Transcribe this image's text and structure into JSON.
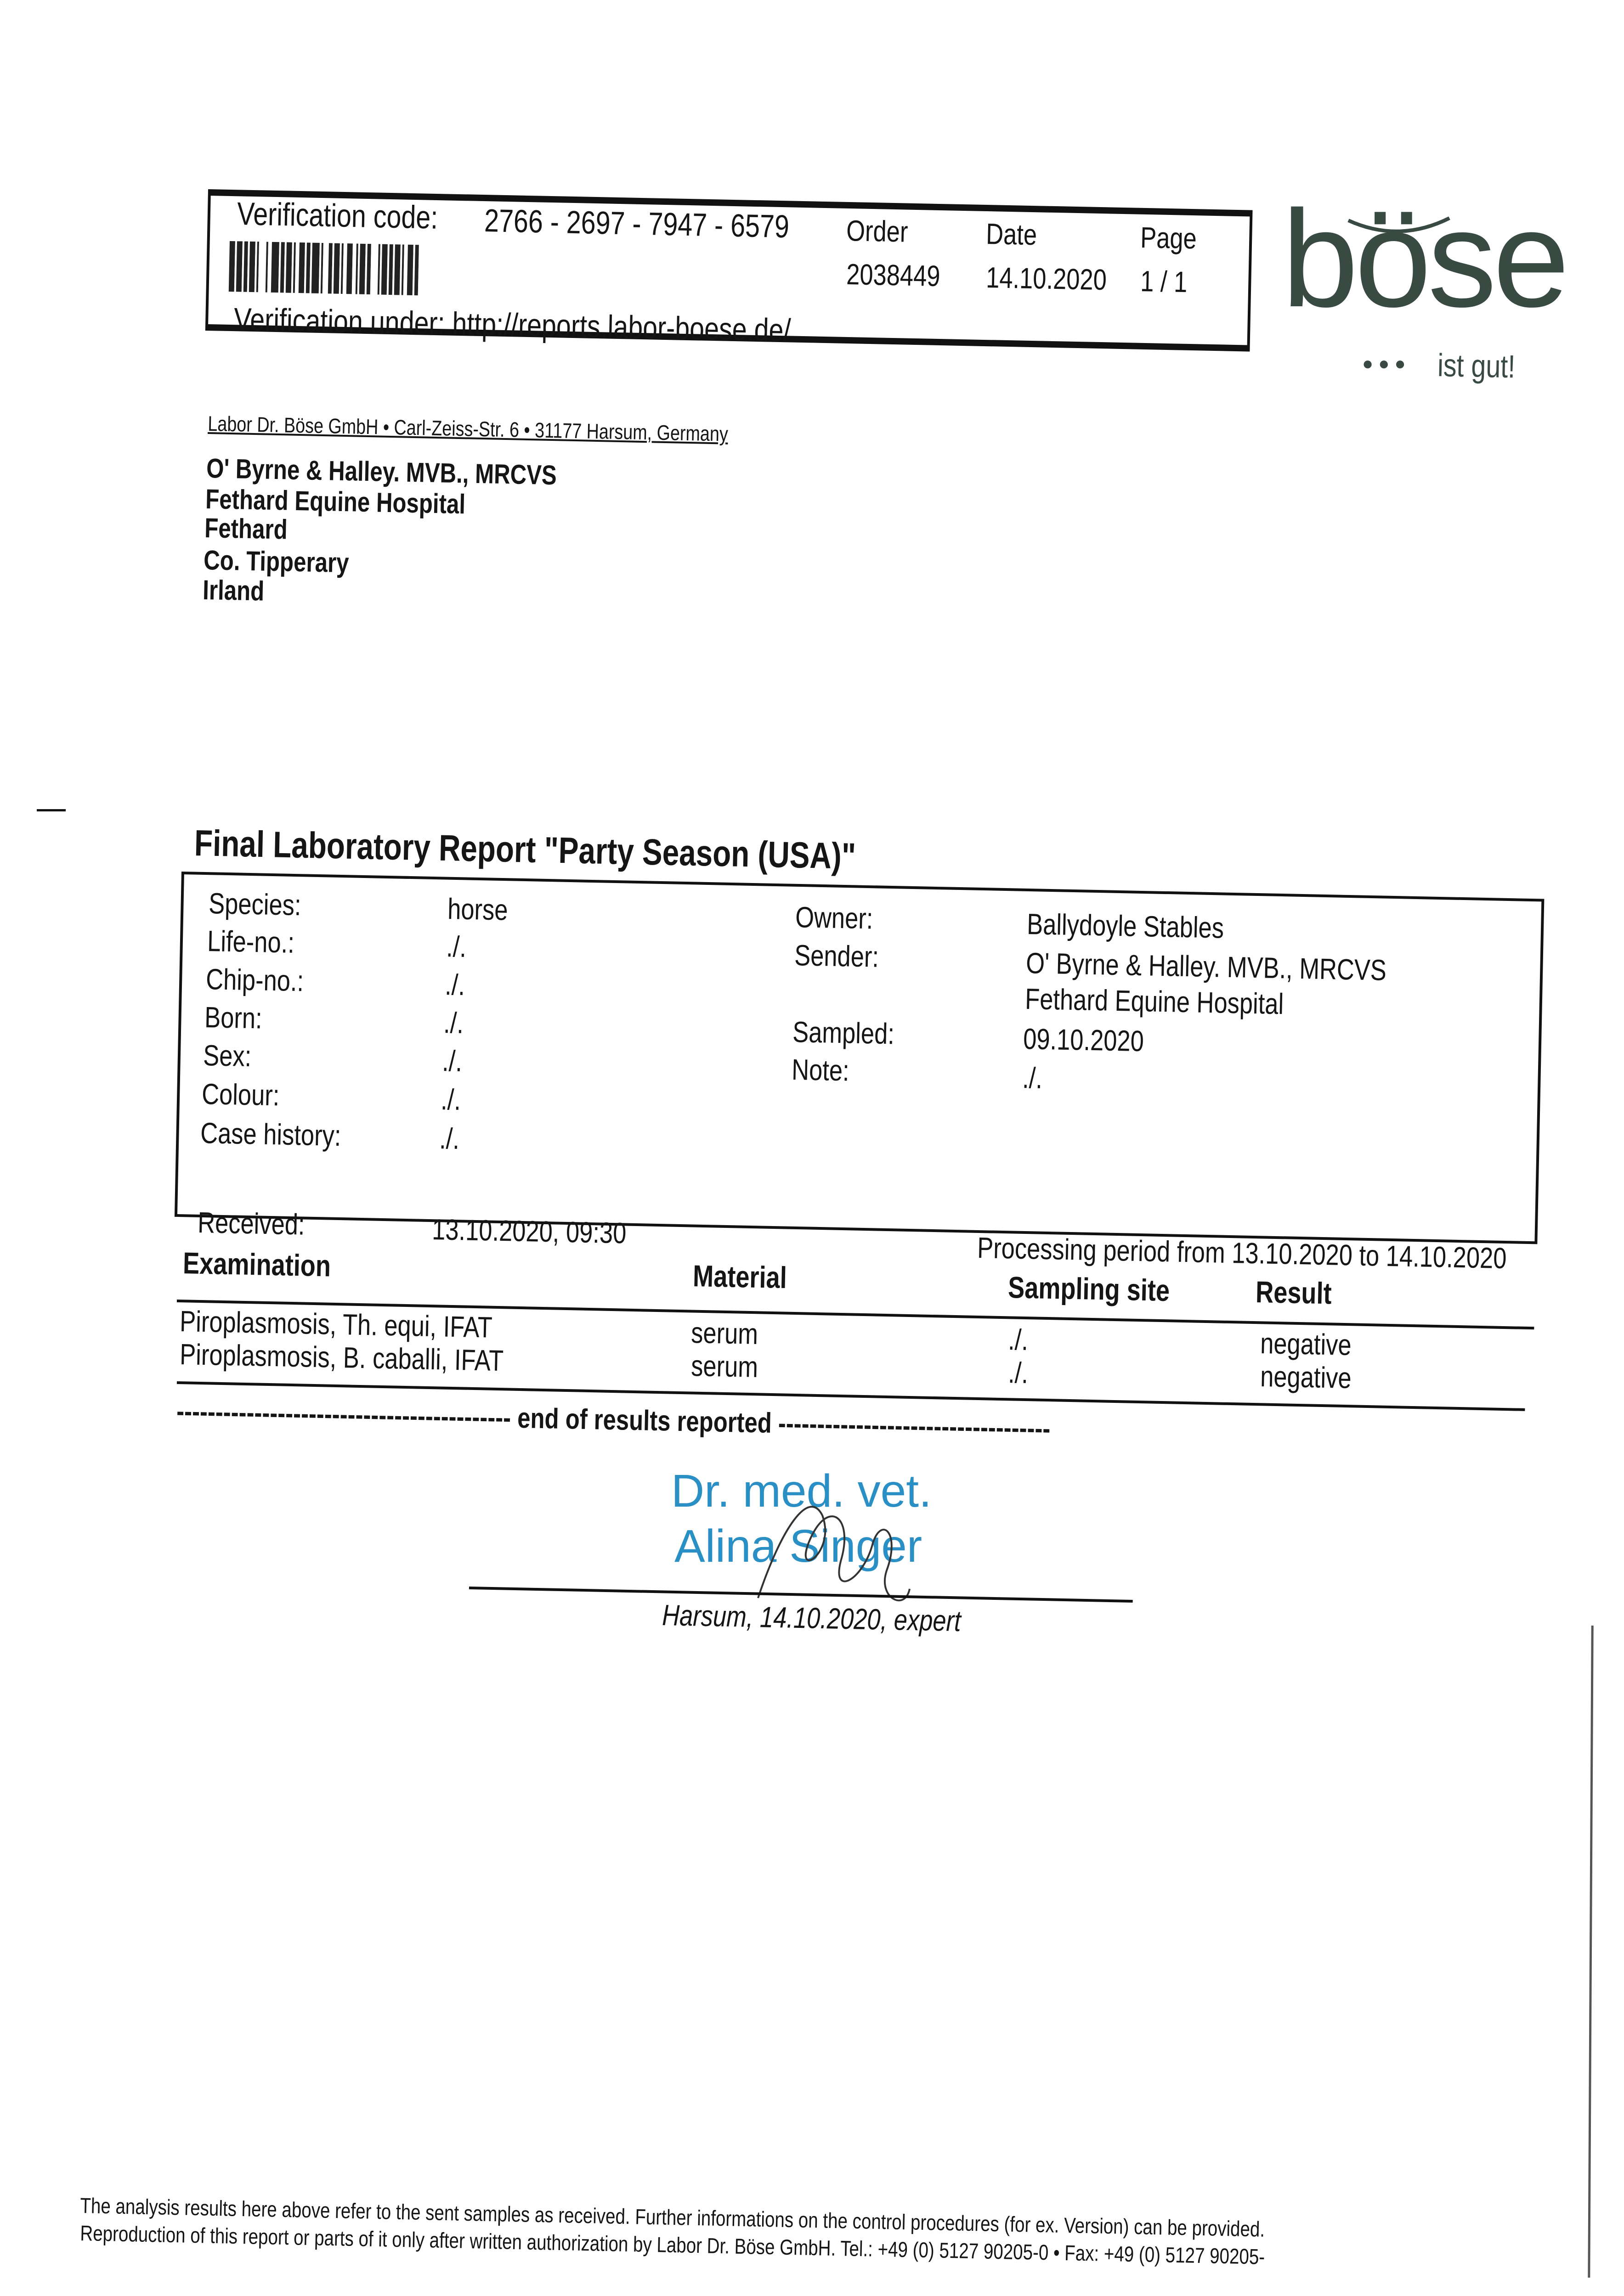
{
  "header": {
    "verification_label": "Verification code:",
    "verification_code": "2766 - 2697 - 7947 - 6579",
    "order_label": "Order",
    "order_value": "2038449",
    "date_label": "Date",
    "date_value": "14.10.2020",
    "page_label": "Page",
    "page_value": "1 / 1",
    "verification_under": "Verification under: http://reports.labor-boese.de/"
  },
  "logo": {
    "name": "böse",
    "tagline": "ist gut!",
    "color": "#394a42"
  },
  "sender_line": "Labor Dr. Böse GmbH • Carl-Zeiss-Str. 6 • 31177 Harsum, Germany",
  "recipient": [
    "O' Byrne & Halley. MVB., MRCVS",
    "Fethard Equine Hospital",
    "Fethard",
    "Co. Tipperary",
    "Irland"
  ],
  "title": "Final Laboratory Report \"Party Season (USA)\"",
  "animal": [
    {
      "label": "Species:",
      "value": "horse"
    },
    {
      "label": "Life-no.:",
      "value": "./."
    },
    {
      "label": "Chip-no.:",
      "value": "./."
    },
    {
      "label": "Born:",
      "value": "./."
    },
    {
      "label": "Sex:",
      "value": "./."
    },
    {
      "label": "Colour:",
      "value": "./."
    },
    {
      "label": "Case history:",
      "value": "./."
    }
  ],
  "info": {
    "owner_label": "Owner:",
    "owner": "Ballydoyle Stables",
    "sender_label": "Sender:",
    "sender1": "O' Byrne & Halley. MVB., MRCVS",
    "sender2": "Fethard Equine Hospital",
    "sampled_label": "Sampled:",
    "sampled": "09.10.2020",
    "note_label": "Note:",
    "note": "./."
  },
  "received_label": "Received:",
  "received": "13.10.2020, 09:30",
  "processing": "Processing period from 13.10.2020 to 14.10.2020",
  "columns": [
    "Examination",
    "Material",
    "Sampling site",
    "Result"
  ],
  "results": [
    {
      "exam": "Piroplasmosis, Th. equi, IFAT",
      "material": "serum",
      "site": "./.",
      "result": "negative"
    },
    {
      "exam": "Piroplasmosis, B. caballi, IFAT",
      "material": "serum",
      "site": "./.",
      "result": "negative"
    }
  ],
  "end_text": "------------------------------------------- end of results reported -----------------------------------",
  "stamp": {
    "line1": "Dr. med. vet.",
    "line2": "Alina Singer",
    "color": "#2a8fc4"
  },
  "signature_caption": "Harsum, 14.10.2020, expert",
  "footer": [
    "The analysis results here above refer to the sent samples as received. Further informations on the control procedures (for ex. Version) can be provided.",
    "Reproduction of this report or parts of it only after written authorization by Labor Dr. Böse GmbH. Tel.: +49 (0) 5127 90205-0 • Fax: +49 (0) 5127 90205-"
  ]
}
